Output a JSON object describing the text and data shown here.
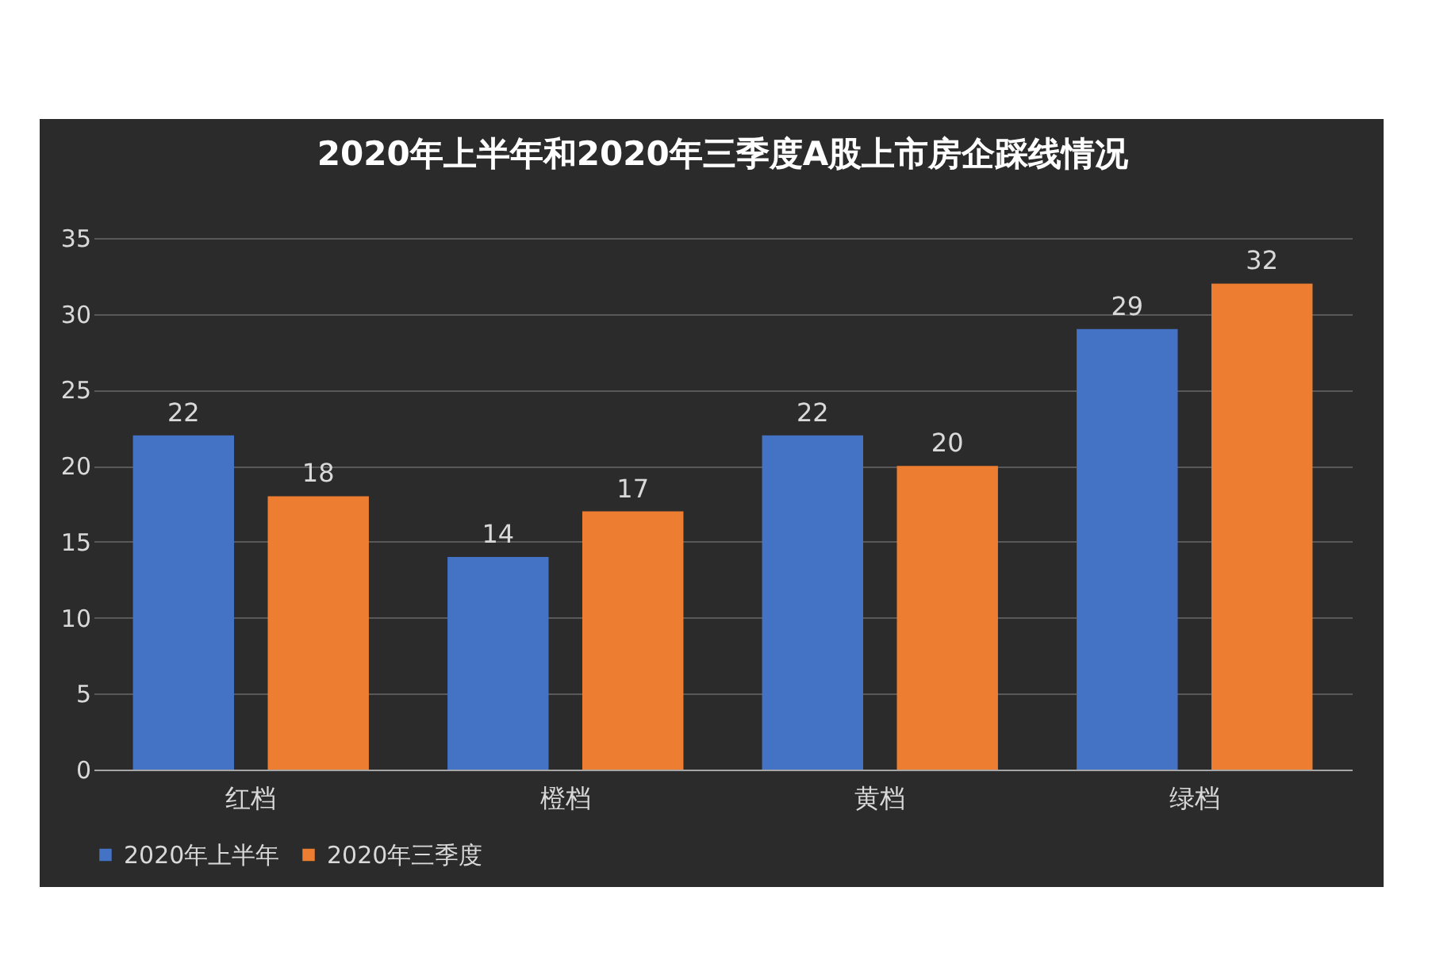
{
  "chart_data": {
    "type": "bar",
    "title": "2020年上半年和2020年三季度A股上市房企踩线情况",
    "categories": [
      "红档",
      "橙档",
      "黄档",
      "绿档"
    ],
    "series": [
      {
        "name": "2020年上半年",
        "color": "#4472c4",
        "values": [
          22,
          14,
          22,
          29
        ]
      },
      {
        "name": "2020年三季度",
        "color": "#ed7d31",
        "values": [
          18,
          17,
          20,
          32
        ]
      }
    ],
    "ylim": [
      0,
      35
    ],
    "yticks": [
      0,
      5,
      10,
      15,
      20,
      25,
      30,
      35
    ],
    "grid": "y",
    "legend": "bottom",
    "data_labels": true
  }
}
